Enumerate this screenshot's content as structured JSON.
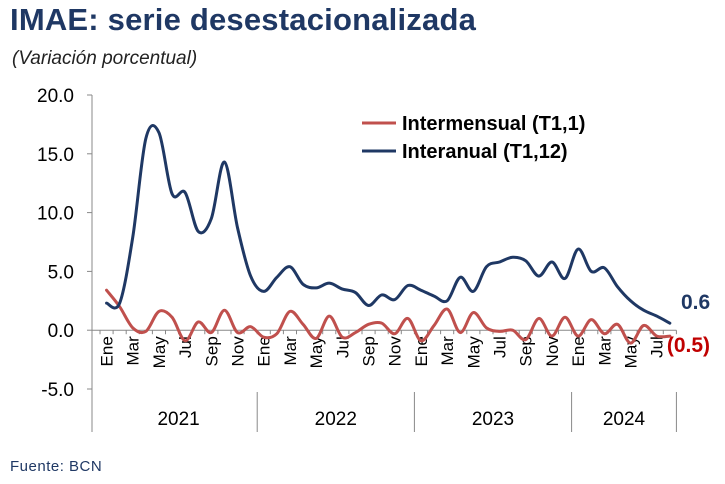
{
  "title": "IMAE: serie desestacionalizada",
  "subtitle": "(Variación porcentual)",
  "source": "Fuente: BCN",
  "chart_data": {
    "type": "line",
    "ylim": [
      -5,
      20
    ],
    "yticks": [
      "20.0",
      "15.0",
      "10.0",
      "5.0",
      "0.0",
      "-5.0"
    ],
    "ytick_values": [
      20,
      15,
      10,
      5,
      0,
      -5
    ],
    "x": [
      "Ene",
      "Feb",
      "Mar",
      "Abr",
      "May",
      "Jun",
      "Jul",
      "Ago",
      "Sep",
      "Oct",
      "Nov",
      "Dic",
      "Ene",
      "Feb",
      "Mar",
      "Abr",
      "May",
      "Jun",
      "Jul",
      "Ago",
      "Sep",
      "Oct",
      "Nov",
      "Dic",
      "Ene",
      "Feb",
      "Mar",
      "Abr",
      "May",
      "Jun",
      "Jul",
      "Ago",
      "Sep",
      "Oct",
      "Nov",
      "Dic",
      "Ene",
      "Feb",
      "Mar",
      "Abr",
      "May",
      "Jun",
      "Jul",
      "Ago"
    ],
    "xtick_labels": [
      "Ene",
      "Mar",
      "May",
      "Jul",
      "Sep",
      "Nov",
      "Ene",
      "Mar",
      "May",
      "Jul",
      "Sep",
      "Nov",
      "Ene",
      "Mar",
      "May",
      "Jul",
      "Sep",
      "Nov",
      "Ene",
      "Mar",
      "May",
      "Jul"
    ],
    "xtick_indices": [
      0,
      2,
      4,
      6,
      8,
      10,
      12,
      14,
      16,
      18,
      20,
      22,
      24,
      26,
      28,
      30,
      32,
      34,
      36,
      38,
      40,
      42
    ],
    "years": [
      {
        "label": "2021",
        "start": 0,
        "end": 12
      },
      {
        "label": "2022",
        "start": 12,
        "end": 24
      },
      {
        "label": "2023",
        "start": 24,
        "end": 36
      },
      {
        "label": "2024",
        "start": 36,
        "end": 44
      }
    ],
    "series": [
      {
        "name": "Intermensual (T1,1)",
        "color": "#c0504d",
        "values": [
          3.4,
          2.0,
          0.2,
          -0.1,
          1.6,
          1.1,
          -0.9,
          0.7,
          -0.2,
          1.7,
          -0.2,
          0.3,
          -0.6,
          -0.3,
          1.6,
          0.5,
          -0.7,
          1.2,
          -0.6,
          -0.2,
          0.5,
          0.6,
          -0.3,
          1.0,
          -0.9,
          0.4,
          1.8,
          -0.2,
          1.5,
          0.2,
          -0.1,
          0.0,
          -0.8,
          1.0,
          -0.5,
          1.1,
          -0.5,
          0.9,
          -0.3,
          0.5,
          -1.1,
          0.4,
          -0.5,
          -0.5
        ]
      },
      {
        "name": "Interanual (T1,12)",
        "color": "#1f3864",
        "values": [
          2.3,
          2.3,
          7.9,
          16.3,
          16.8,
          11.6,
          11.7,
          8.4,
          9.5,
          14.3,
          8.7,
          4.6,
          3.3,
          4.5,
          5.4,
          3.9,
          3.6,
          4.0,
          3.5,
          3.2,
          2.1,
          3.0,
          2.6,
          3.8,
          3.4,
          2.9,
          2.5,
          4.5,
          3.3,
          5.4,
          5.8,
          6.2,
          5.9,
          4.6,
          5.8,
          4.4,
          6.9,
          5.0,
          5.3,
          3.7,
          2.5,
          1.7,
          1.2,
          0.6
        ]
      }
    ],
    "end_labels": [
      {
        "series": "Interanual (T1,12)",
        "text": "0.6",
        "color": "#1f3864"
      },
      {
        "series": "Intermensual (T1,1)",
        "text": "(0.5)",
        "color": "#c00000"
      }
    ],
    "legend_position": "top-right",
    "grid": false
  }
}
